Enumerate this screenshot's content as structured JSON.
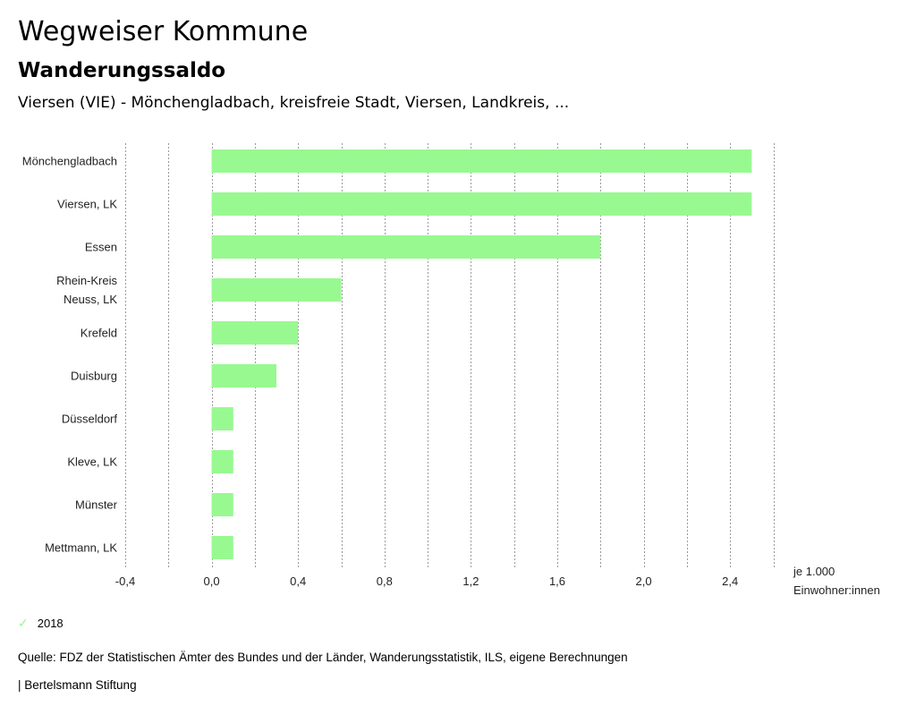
{
  "header": {
    "title": "Wegweiser Kommune",
    "subtitle": "Wanderungssaldo",
    "context": "Viersen (VIE) - Mönchengladbach, kreisfreie Stadt, Viersen, Landkreis, ..."
  },
  "chart_data": {
    "type": "bar",
    "orientation": "horizontal",
    "categories": [
      [
        "Mönchengladbach"
      ],
      [
        "Viersen, LK"
      ],
      [
        "Essen"
      ],
      [
        "Rhein-Kreis",
        "Neuss, LK"
      ],
      [
        "Krefeld"
      ],
      [
        "Duisburg"
      ],
      [
        "Düsseldorf"
      ],
      [
        "Kleve, LK"
      ],
      [
        "Münster"
      ],
      [
        "Mettmann, LK"
      ]
    ],
    "series": [
      {
        "name": "2018",
        "values": [
          2.5,
          2.5,
          1.8,
          0.6,
          0.4,
          0.3,
          0.1,
          0.1,
          0.1,
          0.1
        ]
      }
    ],
    "xlim": [
      -0.4,
      2.6
    ],
    "xticks": [
      "-0,4",
      "0,0",
      "0,4",
      "0,8",
      "1,2",
      "1,6",
      "2,0",
      "2,4"
    ],
    "xtick_values": [
      -0.4,
      0.0,
      0.4,
      0.8,
      1.2,
      1.6,
      2.0,
      2.4
    ],
    "gridline_step": 0.2,
    "unit_label": [
      "je 1.000",
      "Einwohner:innen"
    ],
    "bar_color": "#98f991",
    "grid_color": "#9a9a9a",
    "legend_position": "bottom-left"
  },
  "legend": {
    "icon": "check-icon",
    "label": "2018"
  },
  "footer": {
    "source": "Quelle: FDZ der Statistischen Ämter des Bundes und der Länder, Wanderungsstatistik, ILS, eigene Berechnungen",
    "publisher": "| Bertelsmann Stiftung"
  }
}
